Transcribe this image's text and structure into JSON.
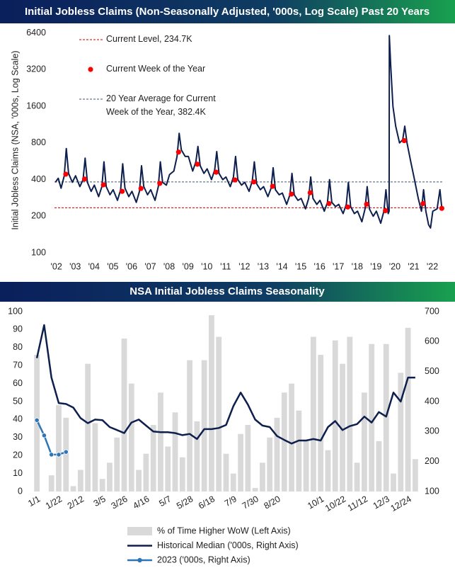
{
  "chart_data": [
    {
      "type": "line",
      "title": "Initial Jobless Claims (Non-Seasonally Adjusted, '000s, Log Scale) Past 20 Years",
      "ylabel": "Initial Jobless Claims (NSA, '000s, Log Scale)",
      "yscale": "log",
      "xlim": [
        2002.4,
        2023.1
      ],
      "ylim": [
        100,
        7000
      ],
      "yticks": [
        100,
        200,
        400,
        800,
        1600,
        3200,
        6400
      ],
      "xticks": [
        {
          "value": 2002.5,
          "label": "'02"
        },
        {
          "value": 2003.5,
          "label": "'03"
        },
        {
          "value": 2004.5,
          "label": "'04"
        },
        {
          "value": 2005.5,
          "label": "'05"
        },
        {
          "value": 2006.5,
          "label": "'06"
        },
        {
          "value": 2007.5,
          "label": "'07"
        },
        {
          "value": 2008.5,
          "label": "'08"
        },
        {
          "value": 2009.5,
          "label": "'09"
        },
        {
          "value": 2010.5,
          "label": "'10"
        },
        {
          "value": 2011.5,
          "label": "'11"
        },
        {
          "value": 2012.5,
          "label": "'12"
        },
        {
          "value": 2013.5,
          "label": "'13"
        },
        {
          "value": 2014.5,
          "label": "'14"
        },
        {
          "value": 2015.5,
          "label": "'15"
        },
        {
          "value": 2016.5,
          "label": "'16"
        },
        {
          "value": 2017.5,
          "label": "'17"
        },
        {
          "value": 2018.5,
          "label": "'18"
        },
        {
          "value": 2019.5,
          "label": "'19"
        },
        {
          "value": 2020.5,
          "label": "'20"
        },
        {
          "value": 2021.5,
          "label": "'21"
        },
        {
          "value": 2022.5,
          "label": "'22"
        }
      ],
      "x": [
        2002.45,
        2002.6,
        2002.75,
        2002.92,
        2003.03,
        2003.15,
        2003.35,
        2003.52,
        2003.75,
        2003.92,
        2004.03,
        2004.15,
        2004.35,
        2004.52,
        2004.75,
        2004.92,
        2005.03,
        2005.15,
        2005.35,
        2005.52,
        2005.75,
        2005.92,
        2006.03,
        2006.15,
        2006.35,
        2006.52,
        2006.75,
        2006.92,
        2007.03,
        2007.15,
        2007.35,
        2007.52,
        2007.75,
        2007.92,
        2008.03,
        2008.15,
        2008.35,
        2008.52,
        2008.75,
        2008.92,
        2009.03,
        2009.15,
        2009.35,
        2009.52,
        2009.75,
        2009.92,
        2010.03,
        2010.15,
        2010.35,
        2010.52,
        2010.75,
        2010.92,
        2011.03,
        2011.15,
        2011.35,
        2011.52,
        2011.75,
        2011.92,
        2012.03,
        2012.15,
        2012.35,
        2012.52,
        2012.75,
        2012.92,
        2013.03,
        2013.15,
        2013.35,
        2013.52,
        2013.75,
        2013.92,
        2014.03,
        2014.15,
        2014.35,
        2014.52,
        2014.75,
        2014.92,
        2015.03,
        2015.15,
        2015.35,
        2015.52,
        2015.75,
        2015.92,
        2016.03,
        2016.15,
        2016.35,
        2016.52,
        2016.75,
        2016.92,
        2017.03,
        2017.15,
        2017.35,
        2017.52,
        2017.75,
        2017.92,
        2018.03,
        2018.15,
        2018.35,
        2018.52,
        2018.75,
        2018.92,
        2019.03,
        2019.15,
        2019.35,
        2019.52,
        2019.75,
        2019.92,
        2020.03,
        2020.15,
        2020.2,
        2020.21,
        2020.28,
        2020.4,
        2020.55,
        2020.75,
        2020.92,
        2021.03,
        2021.15,
        2021.35,
        2021.52,
        2021.75,
        2021.92,
        2022.03,
        2022.15,
        2022.3,
        2022.4,
        2022.52,
        2022.75,
        2022.9,
        2023.0
      ],
      "series": [
        {
          "color": "#0d1f4d",
          "values": [
            380,
            410,
            340,
            430,
            720,
            450,
            380,
            430,
            350,
            400,
            600,
            380,
            320,
            360,
            290,
            350,
            560,
            350,
            300,
            330,
            270,
            330,
            540,
            340,
            290,
            320,
            260,
            320,
            520,
            350,
            300,
            330,
            270,
            350,
            560,
            380,
            360,
            440,
            470,
            620,
            960,
            700,
            620,
            620,
            470,
            560,
            750,
            520,
            450,
            490,
            400,
            480,
            680,
            450,
            400,
            420,
            350,
            420,
            620,
            400,
            360,
            380,
            320,
            390,
            560,
            370,
            330,
            350,
            290,
            340,
            500,
            330,
            300,
            310,
            250,
            300,
            450,
            300,
            270,
            280,
            230,
            280,
            420,
            280,
            250,
            270,
            220,
            260,
            400,
            260,
            240,
            250,
            210,
            250,
            380,
            240,
            210,
            220,
            180,
            230,
            350,
            230,
            200,
            220,
            175,
            220,
            330,
            210,
            220,
            6100,
            3500,
            1600,
            1100,
            800,
            850,
            1100,
            800,
            560,
            420,
            280,
            220,
            330,
            220,
            170,
            160,
            220,
            230,
            330,
            234.7
          ]
        },
        {
          "name": "Current Week of the Year",
          "type": "scatter",
          "color": "#ff0000",
          "x": [
            2003,
            2004,
            2005,
            2006,
            2007,
            2008,
            2009,
            2010,
            2011,
            2012,
            2013,
            2014,
            2015,
            2016,
            2017,
            2018,
            2019,
            2020,
            2021,
            2022,
            2023
          ],
          "values": [
            443,
            404,
            362,
            320,
            338,
            372,
            673,
            535,
            460,
            397,
            383,
            352,
            304,
            312,
            254,
            238,
            251,
            222,
            836,
            254,
            232
          ]
        }
      ],
      "reference_lines": [
        {
          "label": "Current Level, 234.7K",
          "value": 234.7,
          "color": "#c00000"
        },
        {
          "label": "20 Year Average for Current Week of the Year, 382.4K",
          "value": 382.4,
          "color": "#44546a"
        }
      ]
    },
    {
      "type": "bar",
      "title": "NSA Initial Jobless Claims Seasonality",
      "categories": [
        "1/1",
        null,
        null,
        "1/22",
        null,
        null,
        "2/12",
        null,
        null,
        "3/5",
        null,
        null,
        "3/26",
        null,
        null,
        "4/16",
        null,
        null,
        "5/7",
        null,
        null,
        "5/28",
        null,
        null,
        "6/18",
        null,
        null,
        "7/9",
        null,
        null,
        "7/30",
        null,
        null,
        "8/20",
        null,
        null,
        null,
        null,
        null,
        "10/1",
        null,
        null,
        "10/22",
        null,
        null,
        "11/12",
        null,
        null,
        "12/3",
        null,
        null,
        "12/24",
        null
      ],
      "ylim": [
        0,
        100
      ],
      "yticks": [
        0,
        10,
        20,
        30,
        40,
        50,
        60,
        70,
        80,
        90,
        100
      ],
      "y2lim": [
        100,
        700
      ],
      "y2ticks": [
        100,
        200,
        300,
        400,
        500,
        600,
        700
      ],
      "series": [
        {
          "name": "% of Time Higher WoW (Left Axis)",
          "type": "bar",
          "color": "#d9d9d9",
          "values": [
            76,
            0,
            9,
            48,
            41,
            3,
            12,
            71,
            38,
            7,
            16,
            30,
            85,
            60,
            12,
            21,
            37,
            55,
            25,
            44,
            19,
            73,
            39,
            73,
            98,
            86,
            21,
            10,
            32,
            37,
            2,
            16,
            30,
            41,
            55,
            60,
            45,
            28,
            86,
            76,
            23,
            84,
            71,
            86,
            16,
            55,
            82,
            28,
            82,
            10,
            66,
            91,
            18
          ]
        },
        {
          "name": "Historical Median ('000s, Right Axis)",
          "type": "line",
          "axis": "y2",
          "color": "#0d1f4d",
          "values": [
            545,
            655,
            480,
            395,
            392,
            380,
            345,
            328,
            340,
            338,
            315,
            305,
            295,
            330,
            340,
            320,
            300,
            298,
            298,
            295,
            288,
            292,
            275,
            308,
            308,
            312,
            322,
            385,
            430,
            390,
            340,
            320,
            315,
            285,
            272,
            260,
            270,
            270,
            275,
            270,
            315,
            335,
            305,
            318,
            325,
            350,
            330,
            365,
            350,
            430,
            400,
            480,
            480
          ]
        },
        {
          "name": "2023 ('000s, Right Axis)",
          "type": "line",
          "axis": "y2",
          "color": "#2e75b6",
          "markers": true,
          "values": [
            338,
            287,
            223,
            223,
            232,
            null,
            null,
            null,
            null,
            null,
            null,
            null,
            null,
            null,
            null,
            null,
            null,
            null,
            null,
            null,
            null,
            null,
            null,
            null,
            null,
            null,
            null,
            null,
            null,
            null,
            null,
            null,
            null,
            null,
            null,
            null,
            null,
            null,
            null,
            null,
            null,
            null,
            null,
            null,
            null,
            null,
            null,
            null,
            null,
            null,
            null,
            null,
            null
          ]
        }
      ]
    }
  ]
}
